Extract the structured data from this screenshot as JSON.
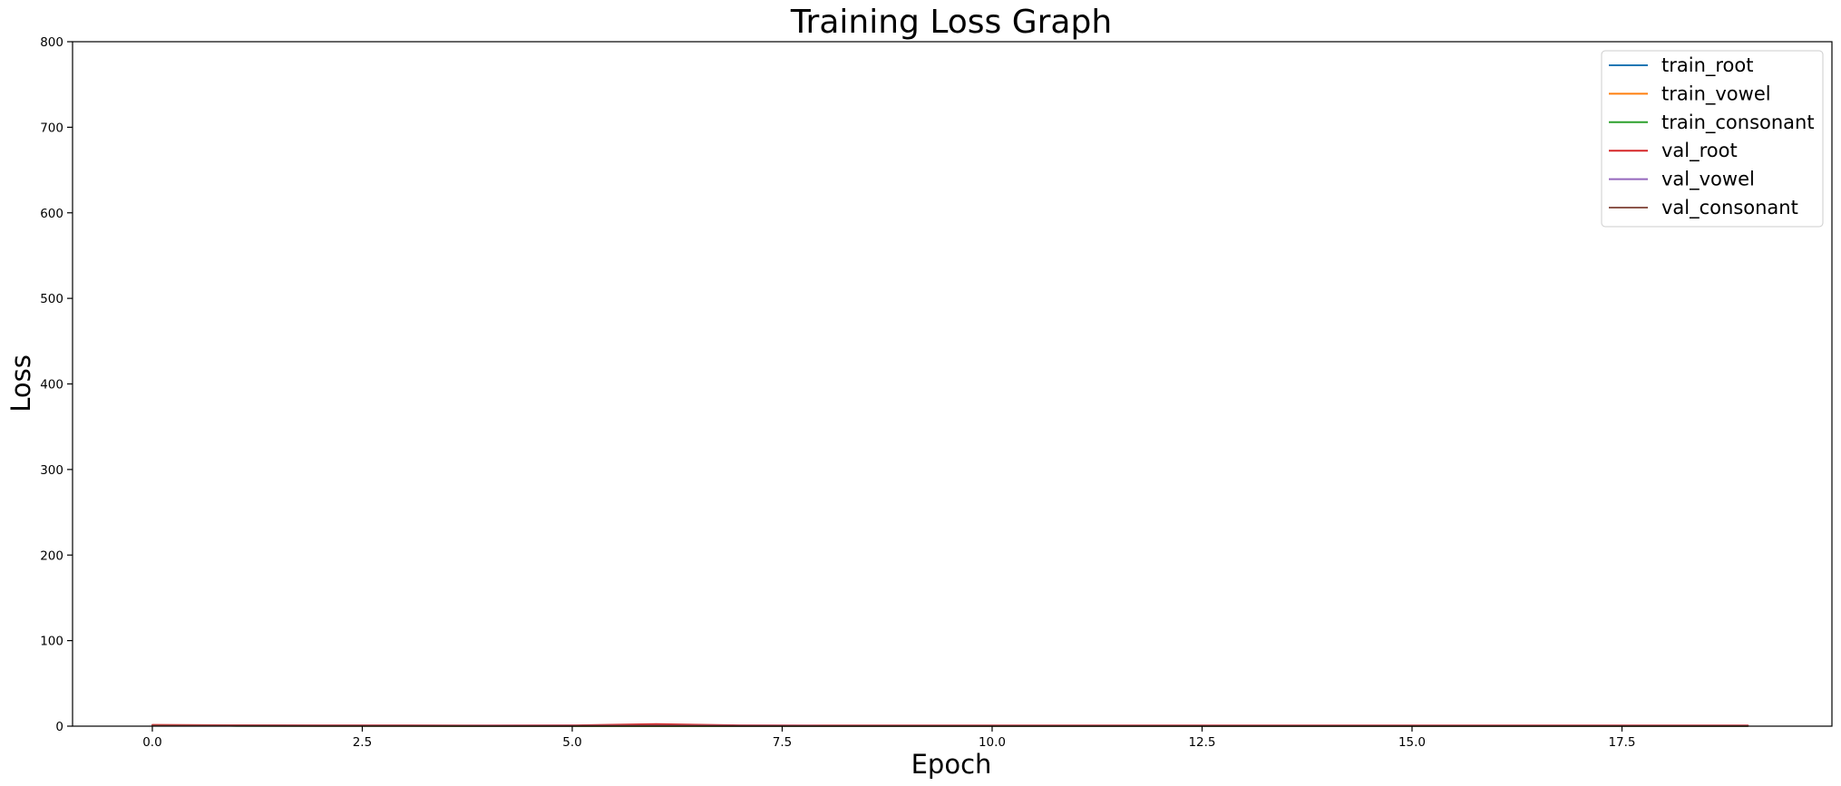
{
  "chart_data": {
    "type": "line",
    "title": "Training Loss Graph",
    "xlabel": "Epoch",
    "ylabel": "Loss",
    "xlim": [
      -0.95,
      20.0
    ],
    "ylim": [
      0,
      800
    ],
    "xticks": [
      0.0,
      2.5,
      5.0,
      7.5,
      10.0,
      12.5,
      15.0,
      17.5
    ],
    "xtick_labels": [
      "0.0",
      "2.5",
      "5.0",
      "7.5",
      "10.0",
      "12.5",
      "15.0",
      "17.5"
    ],
    "yticks": [
      0,
      100,
      200,
      300,
      400,
      500,
      600,
      700,
      800
    ],
    "ytick_labels": [
      "0",
      "100",
      "200",
      "300",
      "400",
      "500",
      "600",
      "700",
      "800"
    ],
    "grid": false,
    "legend_position": "top-right",
    "x": [
      0,
      1,
      2,
      3,
      4,
      5,
      6,
      7,
      8,
      9,
      10,
      11,
      12,
      13,
      14,
      15,
      16,
      17,
      18,
      19
    ],
    "series": [
      {
        "name": "train_root",
        "color": "#1f77b4",
        "values": [
          1.2,
          0.9,
          0.7,
          0.6,
          0.5,
          0.45,
          0.4,
          0.35,
          0.3,
          0.3,
          0.25,
          0.25,
          0.2,
          0.2,
          0.2,
          0.2,
          0.2,
          0.2,
          0.2,
          0.2
        ]
      },
      {
        "name": "train_vowel",
        "color": "#ff7f0e",
        "values": [
          0.6,
          0.4,
          0.3,
          0.25,
          0.2,
          0.2,
          0.2,
          0.15,
          0.15,
          0.15,
          0.1,
          0.1,
          0.1,
          0.1,
          0.1,
          0.1,
          0.1,
          0.1,
          0.1,
          0.1
        ]
      },
      {
        "name": "train_consonant",
        "color": "#2ca02c",
        "values": [
          0.5,
          0.35,
          0.3,
          0.25,
          0.2,
          0.2,
          0.15,
          0.15,
          0.15,
          0.1,
          0.1,
          0.1,
          0.1,
          0.1,
          0.1,
          0.1,
          0.1,
          0.1,
          0.1,
          0.1
        ]
      },
      {
        "name": "val_root",
        "color": "#d62728",
        "values": [
          1.5,
          1.2,
          1.0,
          1.0,
          0.9,
          1.0,
          2.5,
          1.0,
          0.9,
          0.9,
          0.9,
          0.9,
          0.9,
          0.9,
          0.9,
          0.9,
          0.9,
          0.9,
          0.9,
          0.9
        ]
      },
      {
        "name": "val_vowel",
        "color": "#9467bd",
        "values": [
          0.7,
          0.5,
          0.4,
          0.4,
          0.35,
          0.35,
          0.8,
          0.35,
          0.3,
          0.3,
          0.3,
          0.3,
          0.3,
          0.3,
          0.3,
          0.3,
          0.3,
          0.3,
          0.3,
          0.3
        ]
      },
      {
        "name": "val_consonant",
        "color": "#8c564b",
        "values": [
          0.6,
          0.45,
          0.35,
          0.35,
          0.3,
          0.3,
          0.6,
          0.3,
          0.3,
          0.3,
          0.3,
          0.3,
          0.3,
          0.3,
          0.3,
          0.3,
          0.3,
          0.3,
          0.3,
          0.3
        ]
      }
    ]
  }
}
